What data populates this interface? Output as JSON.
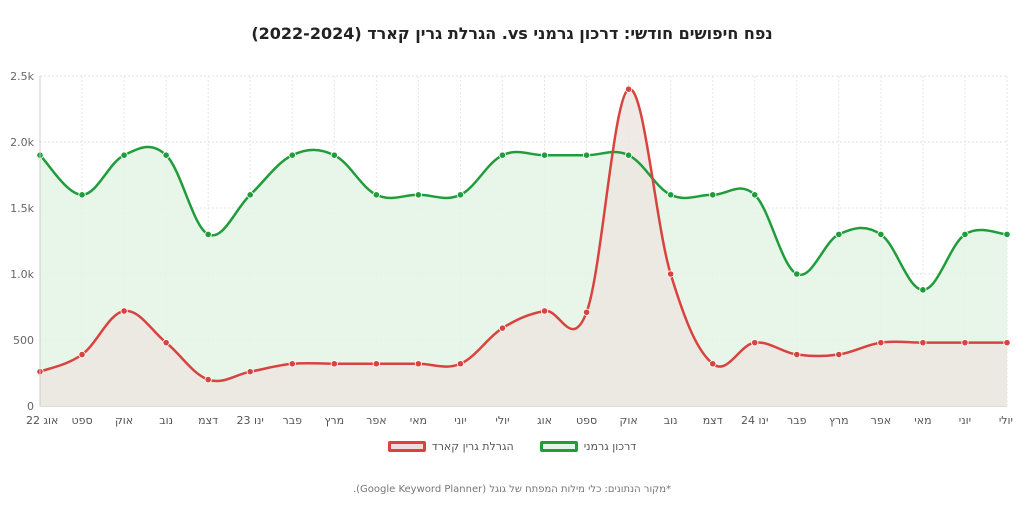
{
  "chart_data": {
    "type": "line",
    "title": "נפח חיפושים חודשי: דרכון גרמני vs. הגרלת גרין קארד (2022-2024)",
    "xlabel": "",
    "ylabel": "",
    "ylim": [
      0,
      2500
    ],
    "yticks": [
      0,
      500,
      1000,
      1500,
      2000,
      2500
    ],
    "ytick_labels": [
      "0",
      "500",
      "1.0k",
      "1.5k",
      "2.0k",
      "2.5k"
    ],
    "categories": [
      "אוג 22",
      "ספט",
      "אוק",
      "נוב",
      "דצמ",
      "ינו 23",
      "פבר",
      "מרץ",
      "אפר",
      "מאי",
      "יוני",
      "יולי",
      "אוג",
      "ספט",
      "אוק",
      "נוב",
      "דצמ",
      "ינו 24",
      "פבר",
      "מרץ",
      "אפר",
      "מאי",
      "יוני",
      "יולי"
    ],
    "series": [
      {
        "name": "דרכון גרמני",
        "color": "#1f9d3a",
        "fill": "#e4f4e6",
        "values": [
          1900,
          1600,
          1900,
          1900,
          1300,
          1600,
          1900,
          1900,
          1600,
          1600,
          1600,
          1900,
          1900,
          1900,
          1900,
          1600,
          1600,
          1600,
          1000,
          1300,
          1300,
          880,
          1300,
          1300
        ]
      },
      {
        "name": "הגרלת גרין קארד",
        "color": "#d9433f",
        "fill": "#ece6e1",
        "values": [
          260,
          390,
          720,
          480,
          200,
          260,
          320,
          320,
          320,
          320,
          320,
          590,
          720,
          710,
          2400,
          1000,
          320,
          480,
          390,
          390,
          480,
          480,
          480,
          480
        ]
      }
    ],
    "grid": true,
    "legend": "bottom-center"
  },
  "legend": {
    "items": [
      "דרכון גרמני",
      "הגרלת גרין קארד"
    ]
  },
  "source_note": "*מקור הנתונים: כלי מילות המפתח של גוגל (Google Keyword Planner)."
}
